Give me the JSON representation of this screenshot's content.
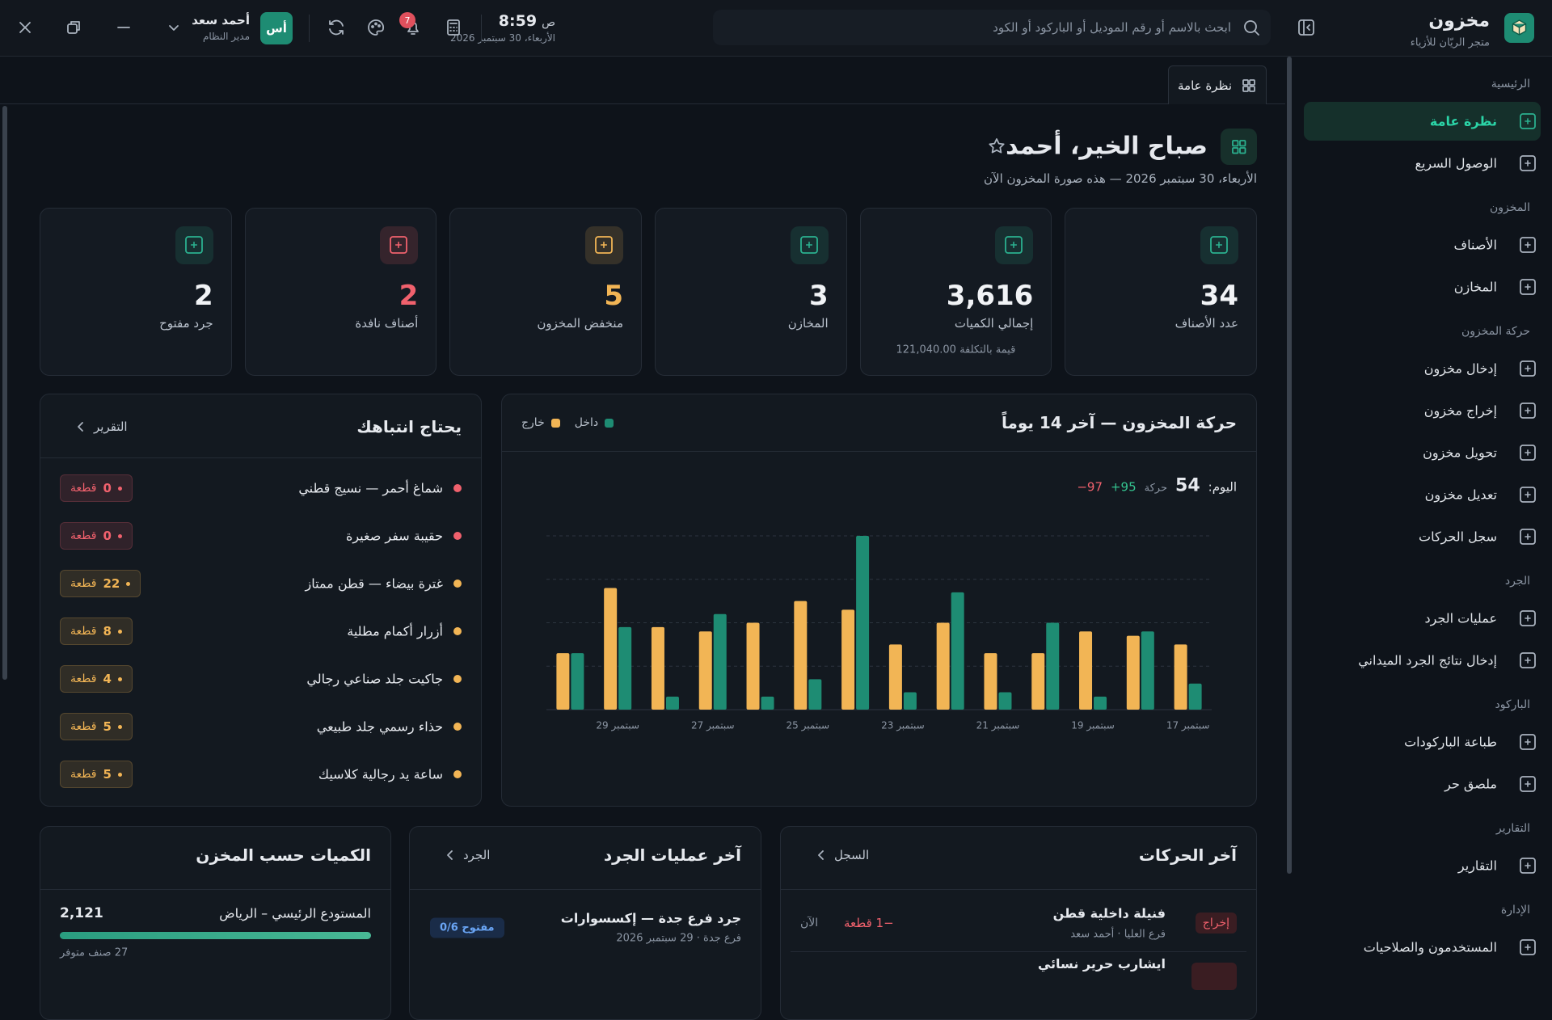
{
  "brand": {
    "name": "مخزون",
    "tagline": "متجر الريّان للأزياء"
  },
  "search_placeholder": "ابحث بالاسم أو رقم الموديل أو الباركود أو الكود",
  "clock": {
    "time": "8:59",
    "period": "ص",
    "date": "الأربعاء، 30 سبتمبر 2026"
  },
  "notifications": 7,
  "user": {
    "initials": "أس",
    "name": "أحمد سعد",
    "role": "مدير النظام"
  },
  "tab": "نظرة عامة",
  "sidebar": [
    {
      "section": "الرئيسية",
      "items": [
        "نظرة عامة",
        "الوصول السريع"
      ]
    },
    {
      "section": "المخزون",
      "items": [
        "الأصناف",
        "المخازن"
      ]
    },
    {
      "section": "حركة المخزون",
      "items": [
        "إدخال مخزون",
        "إخراج مخزون",
        "تحويل مخزون",
        "تعديل مخزون",
        "سجل الحركات"
      ]
    },
    {
      "section": "الجرد",
      "items": [
        "عمليات الجرد",
        "إدخال نتائج الجرد الميداني"
      ]
    },
    {
      "section": "الباركود",
      "items": [
        "طباعة الباركودات",
        "ملصق حر"
      ]
    },
    {
      "section": "التقارير",
      "items": [
        "التقارير"
      ]
    },
    {
      "section": "الإدارة",
      "items": [
        "المستخدمون والصلاحيات"
      ]
    }
  ],
  "greeting": {
    "title": "صباح الخير، أحمد",
    "subtitle": "الأربعاء، 30 سبتمبر 2026 — هذه صورة المخزون الآن"
  },
  "kpis": [
    {
      "value": "34",
      "label": "عدد الأصناف",
      "color": "#2bb08f"
    },
    {
      "value": "3,616",
      "label": "إجمالي الكميات",
      "note": "قيمة بالتكلفة 121,040.00",
      "color": "#2bb08f"
    },
    {
      "value": "3",
      "label": "المخازن",
      "color": "#2bb08f"
    },
    {
      "value": "5",
      "label": "منخفض المخزون",
      "color": "#f2b555",
      "value_color": "#f2b555"
    },
    {
      "value": "2",
      "label": "أصناف نافدة",
      "color": "#f0616d",
      "value_color": "#f0616d"
    },
    {
      "value": "2",
      "label": "جرد مفتوح",
      "color": "#2bb08f"
    }
  ],
  "attention": {
    "title": "يحتاج انتباهك",
    "link": "التقرير",
    "unit": "قطعة",
    "items": [
      {
        "name": "شماغ أحمر — نسيج قطني",
        "qty": 0
      },
      {
        "name": "حقيبة سفر صغيرة",
        "qty": 0
      },
      {
        "name": "غترة بيضاء — قطن ممتاز",
        "qty": 22
      },
      {
        "name": "أزرار أكمام مطلية",
        "qty": 8
      },
      {
        "name": "جاكيت جلد صناعي رجالي",
        "qty": 4
      },
      {
        "name": "حذاء رسمي جلد طبيعي",
        "qty": 5
      },
      {
        "name": "ساعة يد رجالية كلاسيك",
        "qty": 5
      }
    ]
  },
  "chart_data": {
    "type": "bar",
    "title": "حركة المخزون — آخر 14 يوماً",
    "today": {
      "label": "اليوم:",
      "value": 54,
      "moves_label": "حركة",
      "in": "+95",
      "out": "−97"
    },
    "categories": [
      "17 سبتمبر",
      null,
      "19 سبتمبر",
      null,
      "21 سبتمبر",
      null,
      "23 سبتمبر",
      null,
      "25 سبتمبر",
      null,
      "27 سبتمبر",
      null,
      "29 سبتمبر",
      null
    ],
    "series": [
      {
        "name": "داخل",
        "color": "#1e8c73",
        "values": [
          6,
          18,
          3,
          20,
          4,
          27,
          4,
          40,
          7,
          3,
          22,
          3,
          19,
          13
        ]
      },
      {
        "name": "خارج",
        "color": "#f2b555",
        "values": [
          15,
          17,
          18,
          13,
          13,
          20,
          15,
          23,
          25,
          20,
          18,
          19,
          28,
          13
        ]
      }
    ],
    "ylim": [
      0,
      40
    ],
    "yticks": [
      0,
      10,
      20,
      30,
      40
    ],
    "grid": true
  },
  "movements": {
    "title": "آخر الحركات",
    "link": "السجل",
    "rows": [
      {
        "type": "إخراج",
        "item": "فنيلة داخلية قطن",
        "meta": "فرع العليا · أحمد سعد",
        "qty": "−1 قطعة",
        "time": "الآن"
      },
      {
        "item": "ايشارب حرير نسائي"
      }
    ]
  },
  "stocktakes": {
    "title": "آخر عمليات الجرد",
    "link": "الجرد",
    "rows": [
      {
        "name": "جرد فرع جدة — إكسسوارات",
        "meta": "فرع جدة · 29 سبتمبر 2026",
        "status": "مفتوح 0/6"
      }
    ]
  },
  "warehouses": {
    "title": "الكميات حسب المخزن",
    "rows": [
      {
        "name": "المستودع الرئيسي – الرياض",
        "qty": "2,121",
        "note": "27 صنف متوفر"
      }
    ]
  }
}
